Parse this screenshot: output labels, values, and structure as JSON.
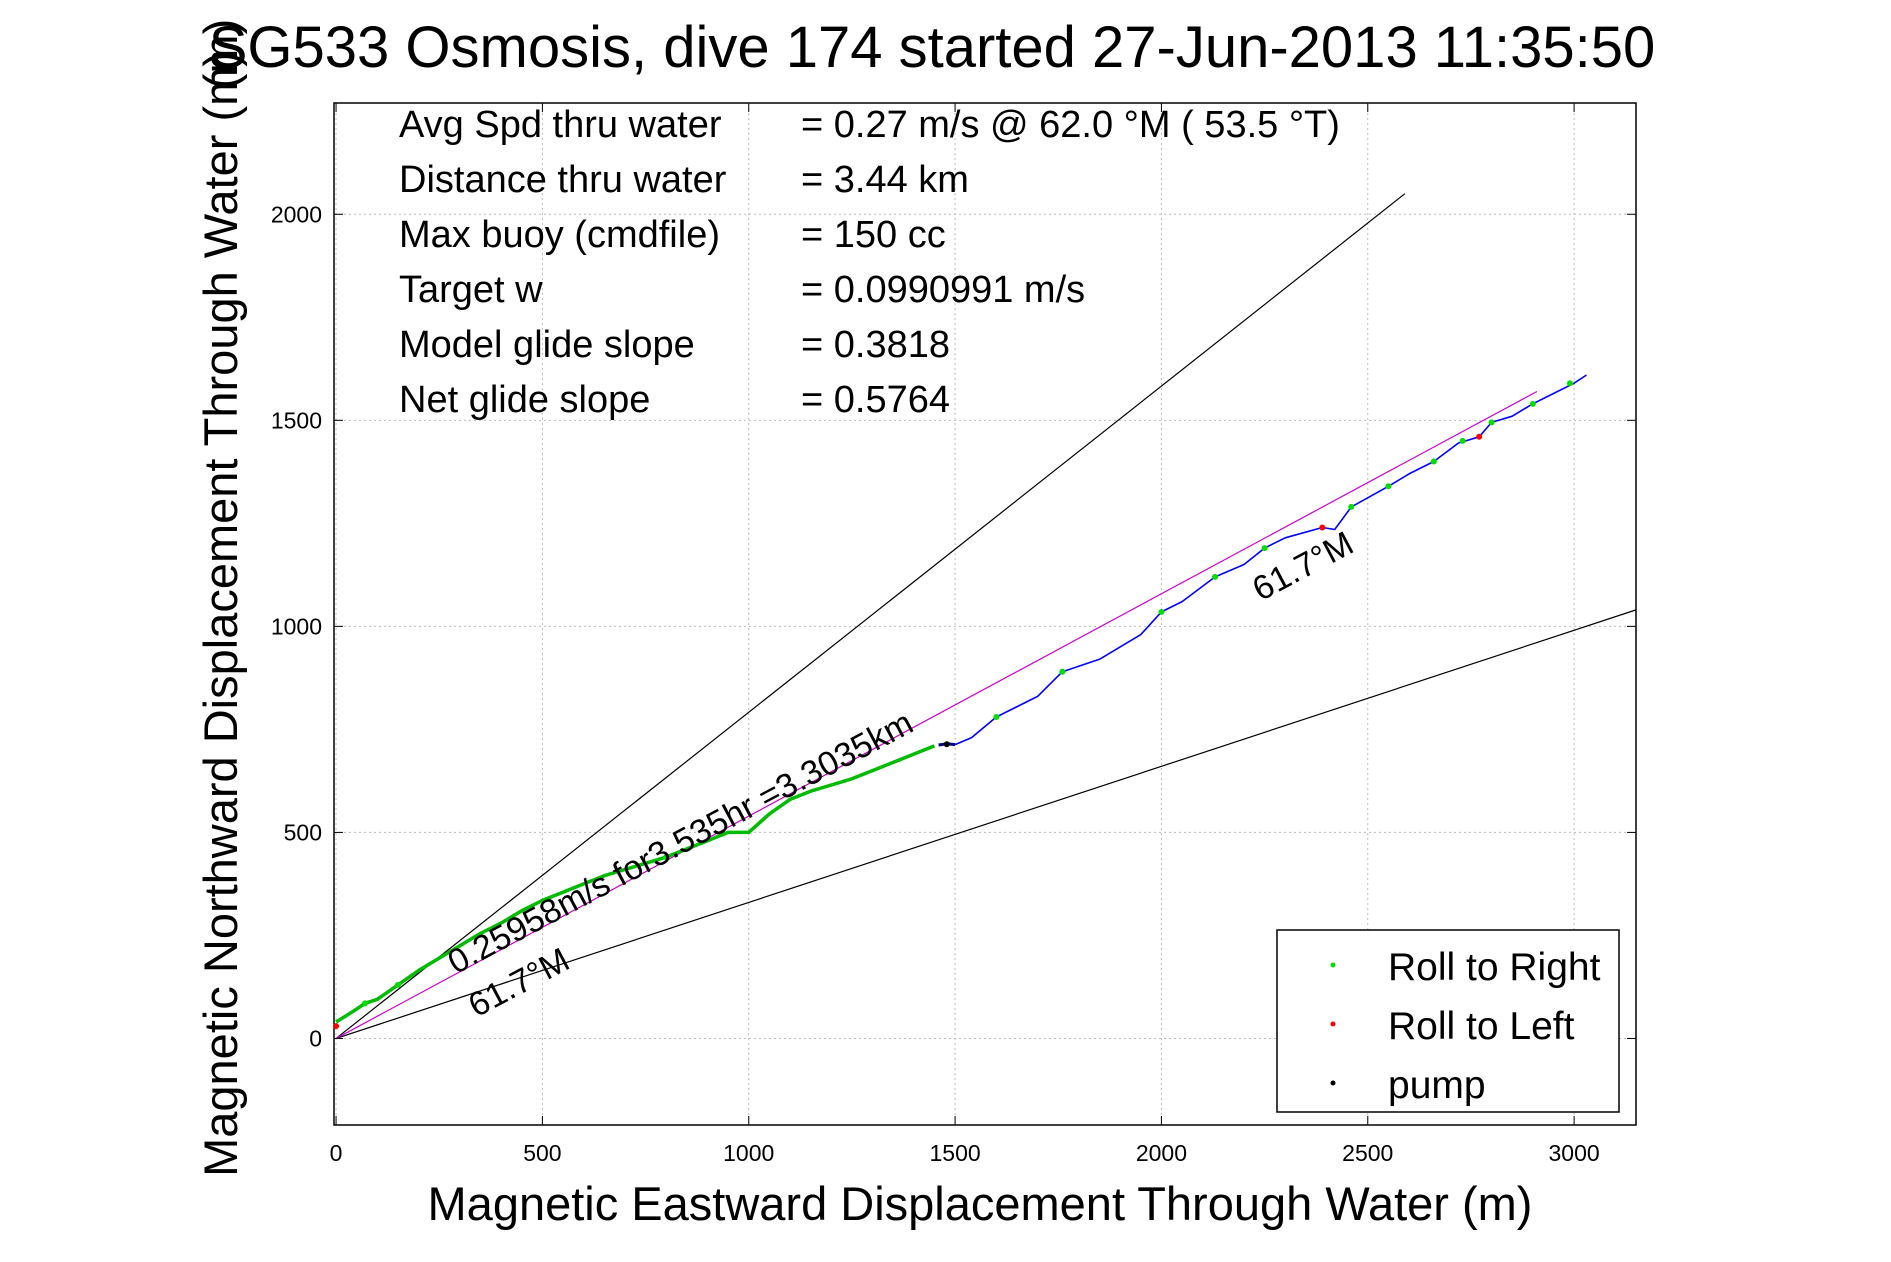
{
  "chart_data": {
    "type": "line",
    "title": "SG533 Osmosis, dive 174 started 27-Jun-2013 11:35:50",
    "title_overlap_glyph": "(m)",
    "xlabel": "Magnetic Eastward Displacement Through Water (m)",
    "ylabel": "Magnetic Northward Displacement Through Water (m)",
    "xlim": [
      -5,
      3150
    ],
    "ylim": [
      -210,
      2270
    ],
    "xticks": [
      0,
      500,
      1000,
      1500,
      2000,
      2500,
      3000
    ],
    "yticks": [
      0,
      500,
      1000,
      1500,
      2000
    ],
    "grid": true,
    "stats": [
      {
        "label": "Avg Spd thru water",
        "value": "=  0.27 m/s @  62.0 °M ( 53.5 °T)"
      },
      {
        "label": "Distance thru water",
        "value": "=  3.44 km"
      },
      {
        "label": "Max buoy (cmdfile)",
        "value": "= 150 cc"
      },
      {
        "label": "Target w",
        "value": "= 0.0990991 m/s"
      },
      {
        "label": "Model glide slope",
        "value": "= 0.3818"
      },
      {
        "label": "Net glide slope",
        "value": "= 0.5764"
      }
    ],
    "annotations": [
      {
        "text": "0.25958m/s for3.535hr =3.3035km",
        "x": 290,
        "y": 155,
        "angle_deg": 28
      },
      {
        "text": "61.7°M",
        "x": 340,
        "y": 50,
        "angle_deg": 28
      },
      {
        "text": "61.7°M",
        "x": 2240,
        "y": 1060,
        "angle_deg": 28
      }
    ],
    "reference_lines": [
      {
        "name": "upper-bound",
        "color": "#000000",
        "x": [
          0,
          2590
        ],
        "y": [
          0,
          2050
        ]
      },
      {
        "name": "lower-bound",
        "color": "#000000",
        "x": [
          0,
          3150
        ],
        "y": [
          0,
          1040
        ]
      },
      {
        "name": "heading-line",
        "color": "#cc00cc",
        "x": [
          0,
          2910
        ],
        "y": [
          0,
          1570
        ]
      }
    ],
    "series": [
      {
        "name": "track-dive",
        "color": "#00bb00",
        "x": [
          0,
          40,
          70,
          100,
          150,
          200,
          250,
          300,
          350,
          400,
          450,
          500,
          550,
          600,
          650,
          700,
          750,
          800,
          850,
          900,
          950,
          1000,
          1050,
          1100,
          1150,
          1200,
          1250,
          1300,
          1350,
          1400,
          1450
        ],
        "y": [
          40,
          65,
          85,
          95,
          130,
          165,
          195,
          225,
          255,
          280,
          310,
          335,
          355,
          375,
          395,
          410,
          425,
          440,
          460,
          480,
          500,
          500,
          545,
          580,
          600,
          615,
          630,
          650,
          670,
          690,
          710
        ]
      },
      {
        "name": "track-pump",
        "color": "#000088",
        "x": [
          1460,
          1480,
          1500
        ],
        "y": [
          712,
          715,
          713
        ]
      },
      {
        "name": "track-climb",
        "color": "#0000ff",
        "x": [
          1500,
          1540,
          1600,
          1700,
          1760,
          1850,
          1950,
          2000,
          2050,
          2130,
          2200,
          2250,
          2300,
          2390,
          2420,
          2460,
          2550,
          2600,
          2660,
          2720,
          2770,
          2800,
          2850,
          2900,
          2950,
          3000,
          3030
        ],
        "y": [
          713,
          730,
          780,
          830,
          890,
          920,
          980,
          1035,
          1060,
          1120,
          1150,
          1190,
          1215,
          1240,
          1235,
          1290,
          1340,
          1370,
          1400,
          1445,
          1460,
          1495,
          1510,
          1540,
          1565,
          1590,
          1610
        ]
      }
    ],
    "markers": [
      {
        "type": "Roll to Right",
        "color": "#00dd00",
        "x": [
          70,
          150,
          800,
          1600,
          1760,
          2000,
          2130,
          2250,
          2460,
          2550,
          2660,
          2730,
          2800,
          2900,
          2990
        ],
        "y": [
          85,
          130,
          440,
          780,
          890,
          1035,
          1120,
          1190,
          1290,
          1340,
          1400,
          1450,
          1495,
          1540,
          1590
        ]
      },
      {
        "type": "Roll to Left",
        "color": "#ff0000",
        "x": [
          0,
          2390,
          2770
        ],
        "y": [
          30,
          1240,
          1460
        ]
      },
      {
        "type": "pump",
        "color": "#000000",
        "x": [
          1480
        ],
        "y": [
          714
        ]
      }
    ],
    "legend": {
      "position": "bottom-right",
      "entries": [
        {
          "label": "Roll to Right",
          "color": "#00dd00"
        },
        {
          "label": "Roll to Left",
          "color": "#ff0000"
        },
        {
          "label": "pump",
          "color": "#000000"
        }
      ]
    }
  }
}
